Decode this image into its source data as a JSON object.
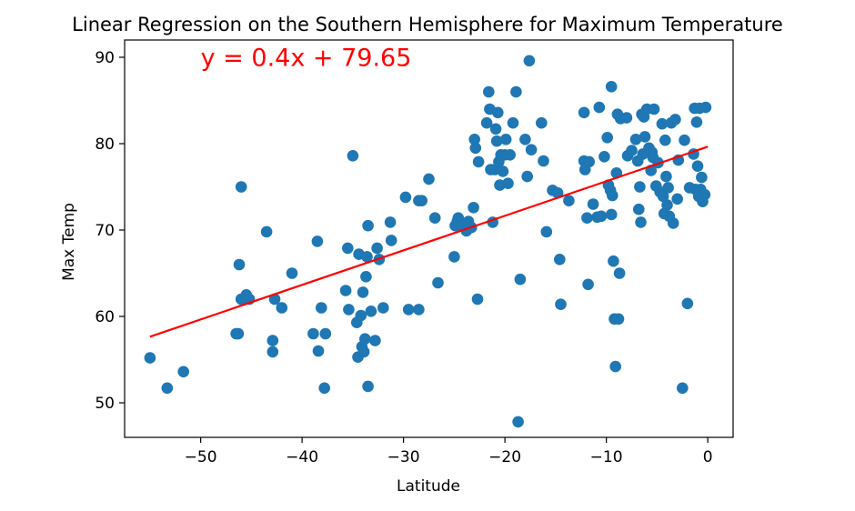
{
  "chart_data": {
    "type": "scatter",
    "title": "Linear Regression on the Southern Hemisphere for Maximum Temperature",
    "xlabel": "Latitude",
    "ylabel": "Max Temp",
    "xlim": [
      -57.5,
      2.5
    ],
    "ylim": [
      46,
      92
    ],
    "xticks": [
      -50,
      -40,
      -30,
      -20,
      -10,
      0
    ],
    "yticks": [
      50,
      60,
      70,
      80,
      90
    ],
    "xtick_labels": [
      "−50",
      "−40",
      "−30",
      "−20",
      "−10",
      "0"
    ],
    "ytick_labels": [
      "50",
      "60",
      "70",
      "80",
      "90"
    ],
    "grid": false,
    "point_color": "#1f77b4",
    "line_color": "#ff0000",
    "annotation": {
      "text": "y = 0.4x + 79.65",
      "x": -50,
      "y": 89
    },
    "regression": {
      "slope": 0.4,
      "intercept": 79.65,
      "x_range": [
        -55,
        0
      ]
    },
    "points": [
      [
        -55,
        55.2
      ],
      [
        -53.3,
        51.7
      ],
      [
        -51.7,
        53.6
      ],
      [
        -46.5,
        58
      ],
      [
        -46.3,
        58
      ],
      [
        -46.2,
        66
      ],
      [
        -46,
        75
      ],
      [
        -46,
        62
      ],
      [
        -45.5,
        62.5
      ],
      [
        -45.2,
        62
      ],
      [
        -43.5,
        69.8
      ],
      [
        -42.9,
        57.2
      ],
      [
        -42.9,
        55.9
      ],
      [
        -42.7,
        62
      ],
      [
        -42,
        61
      ],
      [
        -41,
        65
      ],
      [
        -38.9,
        58
      ],
      [
        -38.5,
        68.7
      ],
      [
        -38.4,
        56
      ],
      [
        -38.1,
        61
      ],
      [
        -37.8,
        51.7
      ],
      [
        -37.7,
        58
      ],
      [
        -35.7,
        63
      ],
      [
        -35.5,
        67.9
      ],
      [
        -35.4,
        60.8
      ],
      [
        -35,
        78.6
      ],
      [
        -34.6,
        59.3
      ],
      [
        -34.5,
        55.3
      ],
      [
        -34.4,
        67.2
      ],
      [
        -34.2,
        60.1
      ],
      [
        -34.1,
        56.5
      ],
      [
        -34,
        62.8
      ],
      [
        -33.9,
        55.9
      ],
      [
        -33.8,
        57.4
      ],
      [
        -33.7,
        64.6
      ],
      [
        -33.6,
        66.9
      ],
      [
        -33.5,
        70.5
      ],
      [
        -33.5,
        51.9
      ],
      [
        -33.2,
        60.6
      ],
      [
        -32.8,
        57.2
      ],
      [
        -32.6,
        67.9
      ],
      [
        -32.4,
        66.6
      ],
      [
        -32,
        61
      ],
      [
        -31.3,
        70.9
      ],
      [
        -31.2,
        68.8
      ],
      [
        -29.8,
        73.8
      ],
      [
        -29.5,
        60.8
      ],
      [
        -28.5,
        60.8
      ],
      [
        -28.5,
        73.4
      ],
      [
        -28.2,
        73.4
      ],
      [
        -27.5,
        75.9
      ],
      [
        -26.9,
        71.4
      ],
      [
        -26.6,
        63.9
      ],
      [
        -25,
        66.9
      ],
      [
        -24.9,
        70.5
      ],
      [
        -24.7,
        71
      ],
      [
        -24.6,
        71.4
      ],
      [
        -24.5,
        70.9
      ],
      [
        -24.3,
        70.5
      ],
      [
        -23.8,
        69.9
      ],
      [
        -23.6,
        71
      ],
      [
        -23.3,
        70.3
      ],
      [
        -23.1,
        72.6
      ],
      [
        -23,
        80.5
      ],
      [
        -22.9,
        79.5
      ],
      [
        -22.7,
        62
      ],
      [
        -22.6,
        77.9
      ],
      [
        -21.8,
        82.4
      ],
      [
        -21.6,
        86
      ],
      [
        -21.5,
        84
      ],
      [
        -21.4,
        77
      ],
      [
        -21.2,
        70.9
      ],
      [
        -21,
        77
      ],
      [
        -20.9,
        81.7
      ],
      [
        -20.8,
        80.3
      ],
      [
        -20.7,
        83.6
      ],
      [
        -20.6,
        77.9
      ],
      [
        -20.5,
        75.2
      ],
      [
        -20.4,
        78.7
      ],
      [
        -20.2,
        76.8
      ],
      [
        -20,
        78.7
      ],
      [
        -19.9,
        80.5
      ],
      [
        -19.7,
        75.4
      ],
      [
        -19.5,
        78.7
      ],
      [
        -19.2,
        82.4
      ],
      [
        -18.9,
        86
      ],
      [
        -18.7,
        47.8
      ],
      [
        -18.5,
        64.3
      ],
      [
        -18,
        80.5
      ],
      [
        -17.8,
        76.2
      ],
      [
        -17.6,
        89.6
      ],
      [
        -17.4,
        79.3
      ],
      [
        -16.4,
        82.4
      ],
      [
        -16.2,
        78
      ],
      [
        -15.9,
        69.8
      ],
      [
        -15.3,
        74.6
      ],
      [
        -14.8,
        74.3
      ],
      [
        -14.6,
        66.6
      ],
      [
        -14.5,
        61.4
      ],
      [
        -13.7,
        73.4
      ],
      [
        -12.2,
        83.6
      ],
      [
        -12.2,
        78
      ],
      [
        -12.1,
        77
      ],
      [
        -11.9,
        71.4
      ],
      [
        -11.8,
        63.7
      ],
      [
        -11.7,
        77.9
      ],
      [
        -11.3,
        73
      ],
      [
        -10.9,
        71.5
      ],
      [
        -10.7,
        84.2
      ],
      [
        -10.5,
        71.6
      ],
      [
        -10.2,
        78.5
      ],
      [
        -9.9,
        80.7
      ],
      [
        -9.8,
        75.2
      ],
      [
        -9.6,
        74.6
      ],
      [
        -9.5,
        86.6
      ],
      [
        -9.5,
        71.8
      ],
      [
        -9.4,
        74
      ],
      [
        -9.3,
        66.4
      ],
      [
        -9.2,
        59.7
      ],
      [
        -9.1,
        54.2
      ],
      [
        -9,
        76.6
      ],
      [
        -8.9,
        83.4
      ],
      [
        -8.8,
        59.7
      ],
      [
        -8.7,
        65
      ],
      [
        -8.6,
        82.9
      ],
      [
        -8,
        83
      ],
      [
        -7.9,
        78.6
      ],
      [
        -7.5,
        79.2
      ],
      [
        -7.1,
        80.5
      ],
      [
        -6.9,
        78
      ],
      [
        -6.8,
        72.4
      ],
      [
        -6.7,
        75
      ],
      [
        -6.6,
        70.9
      ],
      [
        -6.5,
        83.4
      ],
      [
        -6.4,
        78.8
      ],
      [
        -6.3,
        83.1
      ],
      [
        -6.2,
        80.8
      ],
      [
        -6,
        84
      ],
      [
        -5.8,
        79.5
      ],
      [
        -5.6,
        76.9
      ],
      [
        -5.5,
        79
      ],
      [
        -5.4,
        78.4
      ],
      [
        -5.3,
        84
      ],
      [
        -5.1,
        75.1
      ],
      [
        -4.9,
        77.8
      ],
      [
        -4.7,
        74.4
      ],
      [
        -4.5,
        82.3
      ],
      [
        -4.4,
        73.9
      ],
      [
        -4.3,
        71.9
      ],
      [
        -4.2,
        80.4
      ],
      [
        -4.1,
        76.2
      ],
      [
        -4,
        72.9
      ],
      [
        -3.9,
        74.9
      ],
      [
        -3.8,
        71.6
      ],
      [
        -3.6,
        82.4
      ],
      [
        -3.4,
        70.8
      ],
      [
        -3.2,
        82.8
      ],
      [
        -3,
        73.6
      ],
      [
        -2.9,
        78.1
      ],
      [
        -2.5,
        51.7
      ],
      [
        -2.3,
        80.4
      ],
      [
        -2,
        61.5
      ],
      [
        -1.8,
        74.9
      ],
      [
        -1.4,
        78.8
      ],
      [
        -1.3,
        84.1
      ],
      [
        -1.2,
        74.7
      ],
      [
        -1.1,
        82.5
      ],
      [
        -1,
        77.4
      ],
      [
        -0.9,
        73.9
      ],
      [
        -0.8,
        84.1
      ],
      [
        -0.7,
        74.7
      ],
      [
        -0.6,
        76.1
      ],
      [
        -0.5,
        73.3
      ],
      [
        -0.3,
        74.1
      ],
      [
        -0.2,
        84.2
      ]
    ]
  }
}
